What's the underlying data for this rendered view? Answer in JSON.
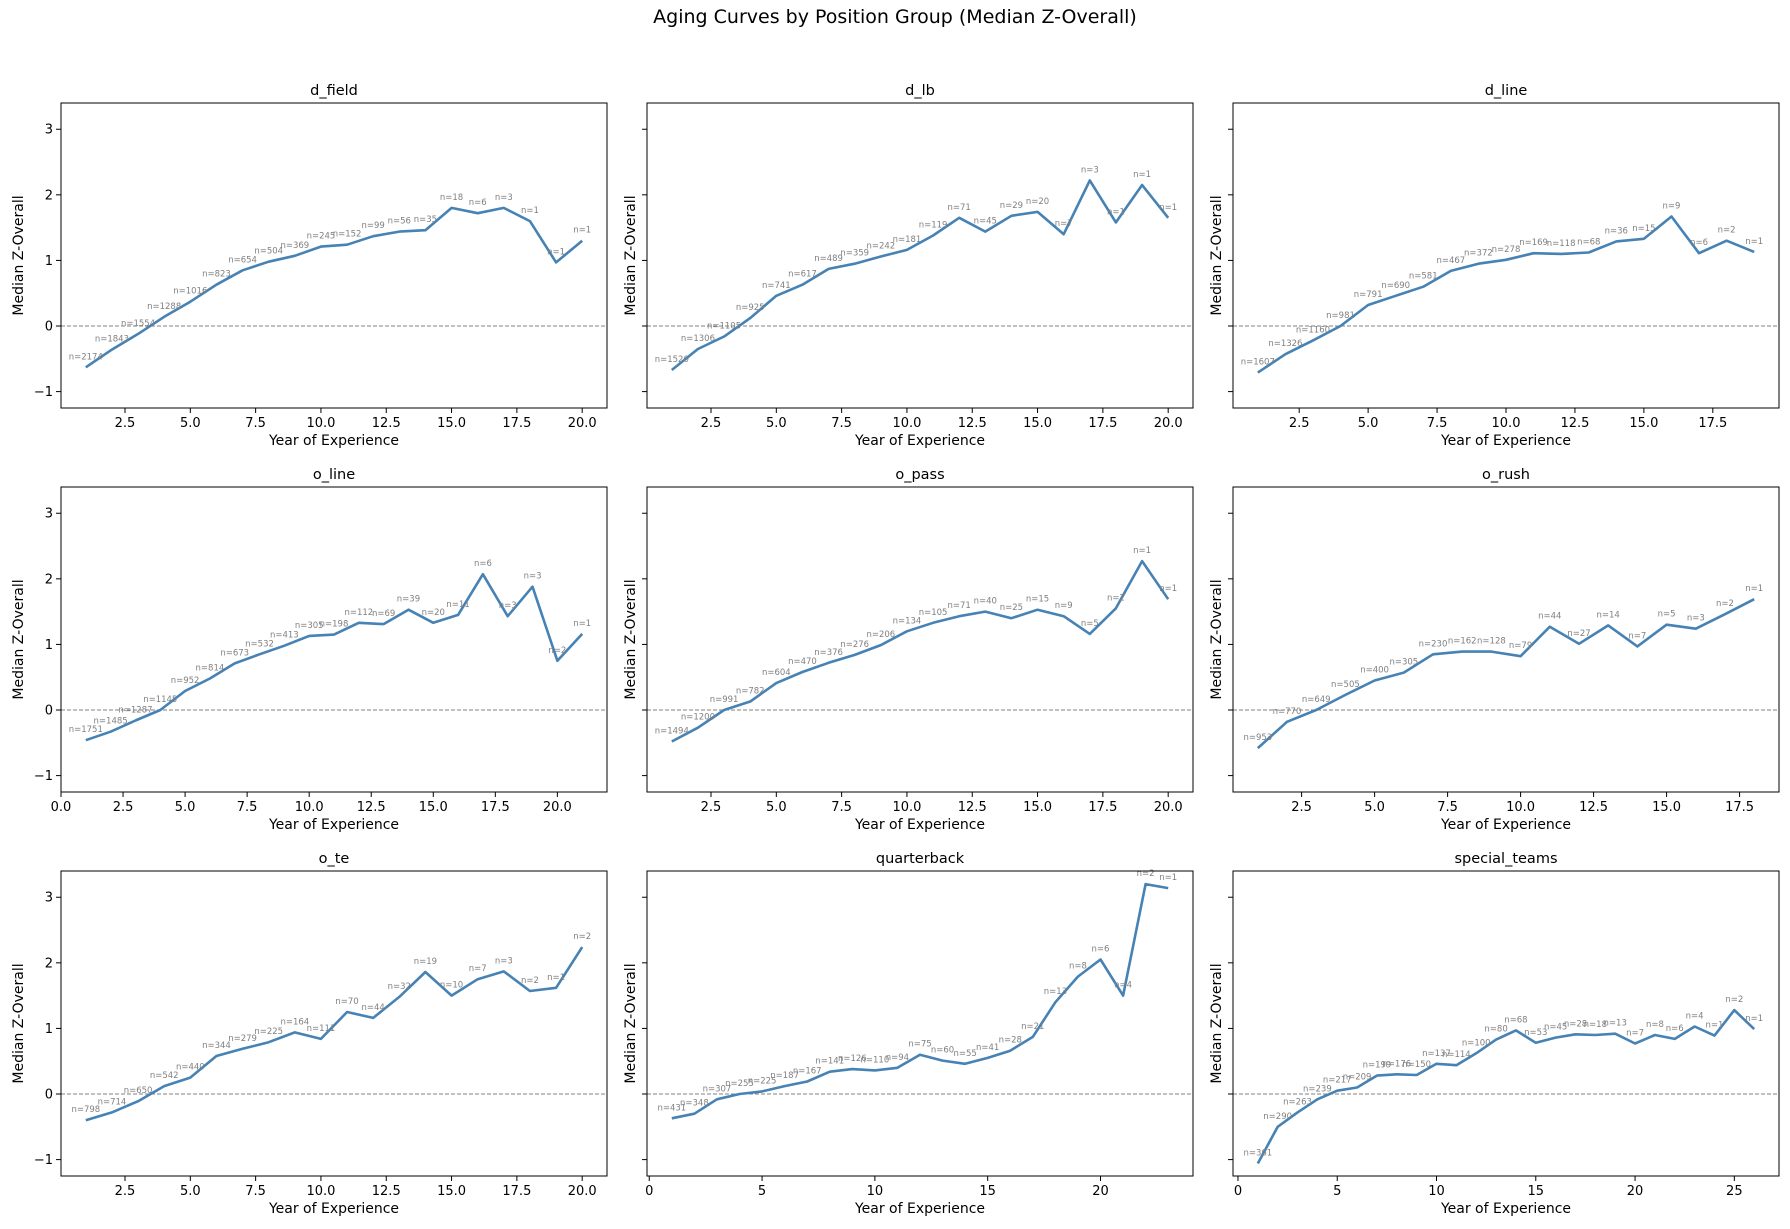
{
  "figure": {
    "title": "Aging Curves by Position Group (Median Z-Overall)"
  },
  "colors": {
    "line": "#4682b4",
    "annotation": "#808080",
    "zero_line": "#808080",
    "axes": "#000000"
  },
  "chart_data": [
    {
      "type": "line",
      "title": "d_field",
      "xlabel": "Year of Experience",
      "ylabel": "Median Z-Overall",
      "xlim": [
        0.05,
        20.95
      ],
      "ylim": [
        -1.25,
        3.4
      ],
      "xticks": [
        2.5,
        5.0,
        7.5,
        10.0,
        12.5,
        15.0,
        17.5,
        20.0
      ],
      "yticks": [
        -1,
        0,
        1,
        2,
        3
      ],
      "x": [
        1,
        2,
        3,
        4,
        5,
        6,
        7,
        8,
        9,
        10,
        11,
        12,
        13,
        14,
        15,
        16,
        17,
        18,
        19,
        20
      ],
      "y": [
        -0.63,
        -0.36,
        -0.12,
        0.14,
        0.37,
        0.63,
        0.85,
        0.98,
        1.07,
        1.21,
        1.24,
        1.37,
        1.44,
        1.46,
        1.8,
        1.72,
        1.8,
        1.6,
        0.97,
        1.3
      ],
      "labels": [
        "n=2174",
        "n=1843",
        "n=1554",
        "n=1288",
        "n=1016",
        "n=823",
        "n=654",
        "n=504",
        "n=369",
        "n=245",
        "n=152",
        "n=99",
        "n=56",
        "n=35",
        "n=18",
        "n=6",
        "n=3",
        "n=1",
        "n=1",
        "n=1"
      ]
    },
    {
      "type": "line",
      "title": "d_lb",
      "xlabel": "Year of Experience",
      "ylabel": "",
      "xlim": [
        0.05,
        20.95
      ],
      "ylim": [
        -1.25,
        3.4
      ],
      "xticks": [
        2.5,
        5.0,
        7.5,
        10.0,
        12.5,
        15.0,
        17.5,
        20.0
      ],
      "yticks": [
        -1,
        0,
        1,
        2,
        3
      ],
      "x": [
        1,
        2,
        3,
        4,
        5,
        6,
        7,
        8,
        9,
        10,
        11,
        12,
        13,
        14,
        15,
        16,
        17,
        18,
        19,
        20
      ],
      "y": [
        -0.67,
        -0.35,
        -0.16,
        0.12,
        0.46,
        0.63,
        0.87,
        0.95,
        1.06,
        1.16,
        1.38,
        1.65,
        1.44,
        1.68,
        1.74,
        1.4,
        2.22,
        1.58,
        2.15,
        1.65
      ],
      "labels": [
        "n=1520",
        "n=1306",
        "n=1105",
        "n=925",
        "n=741",
        "n=617",
        "n=489",
        "n=359",
        "n=242",
        "n=181",
        "n=119",
        "n=71",
        "n=45",
        "n=29",
        "n=20",
        "n=7",
        "n=3",
        "n=1",
        "n=1",
        "n=1"
      ]
    },
    {
      "type": "line",
      "title": "d_line",
      "xlabel": "Year of Experience",
      "ylabel": "",
      "xlim": [
        0.1,
        19.9
      ],
      "ylim": [
        -1.25,
        3.4
      ],
      "xticks": [
        2.5,
        5.0,
        7.5,
        10.0,
        12.5,
        15.0,
        17.5
      ],
      "yticks": [
        -1,
        0,
        1,
        2,
        3
      ],
      "x": [
        1,
        2,
        3,
        4,
        5,
        6,
        7,
        8,
        9,
        10,
        11,
        12,
        13,
        14,
        15,
        16,
        17,
        18,
        19
      ],
      "y": [
        -0.71,
        -0.43,
        -0.22,
        0.0,
        0.32,
        0.46,
        0.6,
        0.84,
        0.95,
        1.01,
        1.11,
        1.1,
        1.12,
        1.29,
        1.33,
        1.67,
        1.11,
        1.3,
        1.13
      ],
      "labels": [
        "n=1607",
        "n=1326",
        "n=1160",
        "n=981",
        "n=791",
        "n=690",
        "n=581",
        "n=467",
        "n=372",
        "n=278",
        "n=169",
        "n=118",
        "n=68",
        "n=36",
        "n=15",
        "n=9",
        "n=6",
        "n=2",
        "n=1"
      ]
    },
    {
      "type": "line",
      "title": "o_line",
      "xlabel": "Year of Experience",
      "ylabel": "Median Z-Overall",
      "xlim": [
        0.0,
        22.0
      ],
      "ylim": [
        -1.25,
        3.4
      ],
      "xticks": [
        0.0,
        2.5,
        5.0,
        7.5,
        10.0,
        12.5,
        15.0,
        17.5,
        20.0
      ],
      "yticks": [
        -1,
        0,
        1,
        2,
        3
      ],
      "x": [
        1,
        2,
        3,
        4,
        5,
        6,
        7,
        8,
        9,
        10,
        11,
        12,
        13,
        14,
        15,
        16,
        17,
        18,
        19,
        20,
        21
      ],
      "y": [
        -0.46,
        -0.33,
        -0.16,
        0.0,
        0.29,
        0.48,
        0.71,
        0.85,
        0.98,
        1.13,
        1.15,
        1.33,
        1.31,
        1.53,
        1.33,
        1.45,
        2.07,
        1.43,
        1.88,
        0.75,
        1.16
      ],
      "labels": [
        "n=1751",
        "n=1485",
        "n=1287",
        "n=1145",
        "n=952",
        "n=814",
        "n=673",
        "n=532",
        "n=413",
        "n=305",
        "n=198",
        "n=112",
        "n=69",
        "n=39",
        "n=20",
        "n=11",
        "n=6",
        "n=3",
        "n=3",
        "n=2",
        "n=1"
      ]
    },
    {
      "type": "line",
      "title": "o_pass",
      "xlabel": "Year of Experience",
      "ylabel": "",
      "xlim": [
        0.05,
        20.95
      ],
      "ylim": [
        -1.25,
        3.4
      ],
      "xticks": [
        2.5,
        5.0,
        7.5,
        10.0,
        12.5,
        15.0,
        17.5,
        20.0
      ],
      "yticks": [
        -1,
        0,
        1,
        2,
        3
      ],
      "x": [
        1,
        2,
        3,
        4,
        5,
        6,
        7,
        8,
        9,
        10,
        11,
        12,
        13,
        14,
        15,
        16,
        17,
        18,
        19,
        20
      ],
      "y": [
        -0.48,
        -0.27,
        0.0,
        0.13,
        0.41,
        0.58,
        0.72,
        0.84,
        0.99,
        1.2,
        1.33,
        1.43,
        1.5,
        1.4,
        1.53,
        1.43,
        1.16,
        1.55,
        2.27,
        1.69
      ],
      "labels": [
        "n=1494",
        "n=1200",
        "n=991",
        "n=782",
        "n=604",
        "n=470",
        "n=376",
        "n=276",
        "n=206",
        "n=134",
        "n=105",
        "n=71",
        "n=40",
        "n=25",
        "n=15",
        "n=9",
        "n=5",
        "n=2",
        "n=1",
        "n=1"
      ]
    },
    {
      "type": "line",
      "title": "o_rush",
      "xlabel": "Year of Experience",
      "ylabel": "",
      "xlim": [
        0.15,
        18.85
      ],
      "ylim": [
        -1.25,
        3.4
      ],
      "xticks": [
        2.5,
        5.0,
        7.5,
        10.0,
        12.5,
        15.0,
        17.5
      ],
      "yticks": [
        -1,
        0,
        1,
        2,
        3
      ],
      "x": [
        1,
        2,
        3,
        4,
        5,
        6,
        7,
        8,
        9,
        10,
        11,
        12,
        13,
        14,
        15,
        16,
        17,
        18
      ],
      "y": [
        -0.58,
        -0.18,
        0.0,
        0.23,
        0.45,
        0.57,
        0.85,
        0.89,
        0.89,
        0.82,
        1.27,
        1.01,
        1.29,
        0.97,
        1.3,
        1.24,
        1.46,
        1.69
      ],
      "labels": [
        "n=953",
        "n=770",
        "n=649",
        "n=505",
        "n=400",
        "n=305",
        "n=230",
        "n=162",
        "n=128",
        "n=79",
        "n=44",
        "n=27",
        "n=14",
        "n=7",
        "n=5",
        "n=3",
        "n=2",
        "n=1"
      ]
    },
    {
      "type": "line",
      "title": "o_te",
      "xlabel": "Year of Experience",
      "ylabel": "Median Z-Overall",
      "xlim": [
        0.05,
        20.95
      ],
      "ylim": [
        -1.25,
        3.4
      ],
      "xticks": [
        2.5,
        5.0,
        7.5,
        10.0,
        12.5,
        15.0,
        17.5,
        20.0
      ],
      "yticks": [
        -1,
        0,
        1,
        2,
        3
      ],
      "x": [
        1,
        2,
        3,
        4,
        5,
        6,
        7,
        8,
        9,
        10,
        11,
        12,
        13,
        14,
        15,
        16,
        17,
        18,
        19,
        20
      ],
      "y": [
        -0.4,
        -0.28,
        -0.11,
        0.12,
        0.25,
        0.58,
        0.69,
        0.79,
        0.94,
        0.84,
        1.25,
        1.16,
        1.48,
        1.86,
        1.5,
        1.75,
        1.87,
        1.57,
        1.62,
        2.24
      ],
      "labels": [
        "n=798",
        "n=714",
        "n=650",
        "n=542",
        "n=440",
        "n=344",
        "n=279",
        "n=225",
        "n=164",
        "n=111",
        "n=70",
        "n=44",
        "n=32",
        "n=19",
        "n=10",
        "n=7",
        "n=3",
        "n=2",
        "n=1",
        "n=2"
      ]
    },
    {
      "type": "line",
      "title": "quarterback",
      "xlabel": "Year of Experience",
      "ylabel": "",
      "xlim": [
        -0.1,
        24.1
      ],
      "ylim": [
        -1.25,
        3.4
      ],
      "xticks": [
        0,
        5,
        10,
        15,
        20
      ],
      "yticks": [
        -1,
        0,
        1,
        2,
        3
      ],
      "x": [
        1,
        2,
        3,
        4,
        5,
        6,
        7,
        8,
        9,
        10,
        11,
        12,
        13,
        14,
        15,
        16,
        17,
        18,
        19,
        20,
        21,
        22,
        23
      ],
      "y": [
        -0.37,
        -0.3,
        -0.08,
        0.0,
        0.04,
        0.12,
        0.19,
        0.34,
        0.38,
        0.36,
        0.4,
        0.6,
        0.51,
        0.46,
        0.55,
        0.66,
        0.87,
        1.4,
        1.79,
        2.05,
        1.5,
        3.2,
        3.14
      ],
      "labels": [
        "n=431",
        "n=348",
        "n=307",
        "n=255",
        "n=225",
        "n=187",
        "n=167",
        "n=141",
        "n=126",
        "n=110",
        "n=94",
        "n=75",
        "n=60",
        "n=55",
        "n=41",
        "n=28",
        "n=21",
        "n=13",
        "n=8",
        "n=6",
        "n=4",
        "n=2",
        "n=1"
      ]
    },
    {
      "type": "line",
      "title": "special_teams",
      "xlabel": "Year of Experience",
      "ylabel": "",
      "xlim": [
        -0.25,
        27.25
      ],
      "ylim": [
        -1.25,
        3.4
      ],
      "xticks": [
        0,
        5,
        10,
        15,
        20,
        25
      ],
      "yticks": [
        -1,
        0,
        1,
        2,
        3
      ],
      "x": [
        1,
        2,
        3,
        4,
        5,
        6,
        7,
        8,
        9,
        10,
        11,
        12,
        13,
        14,
        15,
        16,
        17,
        18,
        19,
        20,
        21,
        22,
        23,
        24,
        25,
        26
      ],
      "y": [
        -1.06,
        -0.5,
        -0.28,
        -0.08,
        0.05,
        0.1,
        0.28,
        0.3,
        0.29,
        0.46,
        0.44,
        0.62,
        0.83,
        0.97,
        0.78,
        0.86,
        0.91,
        0.9,
        0.92,
        0.77,
        0.9,
        0.84,
        1.03,
        0.89,
        1.28,
        0.99
      ],
      "labels": [
        "n=361",
        "n=290",
        "n=263",
        "n=239",
        "n=217",
        "n=209",
        "n=199",
        "n=176",
        "n=150",
        "n=137",
        "n=114",
        "n=100",
        "n=80",
        "n=68",
        "n=53",
        "n=45",
        "n=28",
        "n=18",
        "n=13",
        "n=7",
        "n=8",
        "n=6",
        "n=4",
        "n=1",
        "n=2",
        "n=1"
      ]
    }
  ]
}
